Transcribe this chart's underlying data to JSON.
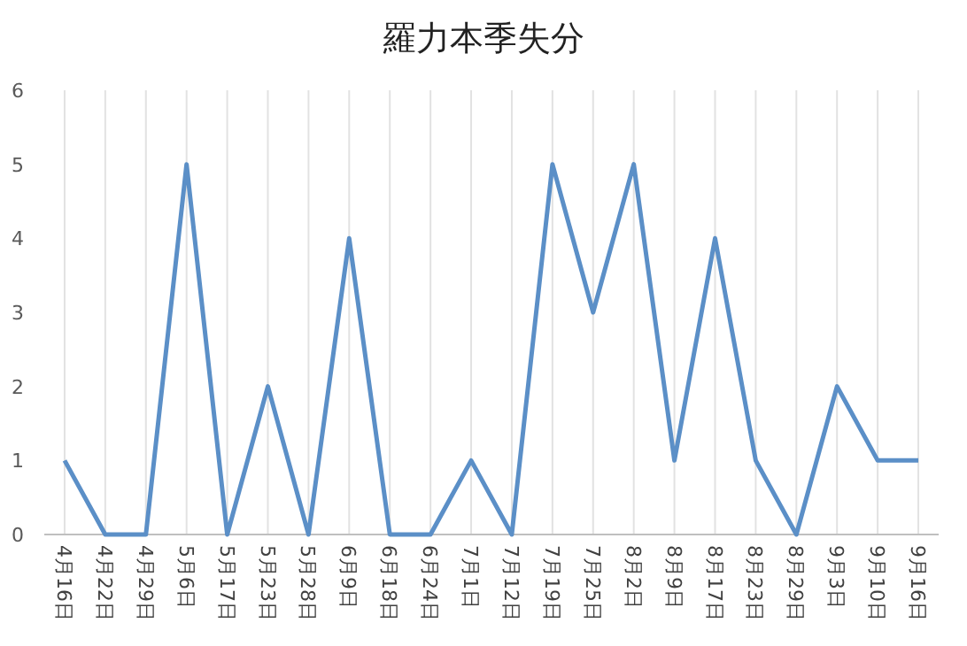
{
  "chart_data": {
    "type": "line",
    "title": "羅力本季失分",
    "categories": [
      "4月16日",
      "4月22日",
      "4月29日",
      "5月6日",
      "5月17日",
      "5月23日",
      "5月28日",
      "6月9日",
      "6月18日",
      "6月24日",
      "7月1日",
      "7月12日",
      "7月19日",
      "7月25日",
      "8月2日",
      "8月9日",
      "8月17日",
      "8月23日",
      "8月29日",
      "9月3日",
      "9月10日",
      "9月16日"
    ],
    "series": [
      {
        "color": "#5b8fc7",
        "values": [
          1,
          0,
          0,
          5,
          0,
          2,
          0,
          4,
          0,
          0,
          1,
          0,
          5,
          3,
          5,
          1,
          4,
          1,
          0,
          2,
          1,
          1
        ]
      }
    ],
    "ylim": [
      0,
      6
    ],
    "yticks": [
      0,
      1,
      2,
      3,
      4,
      5,
      6
    ],
    "grid": "x",
    "marker": "none",
    "line_style": "solid"
  }
}
